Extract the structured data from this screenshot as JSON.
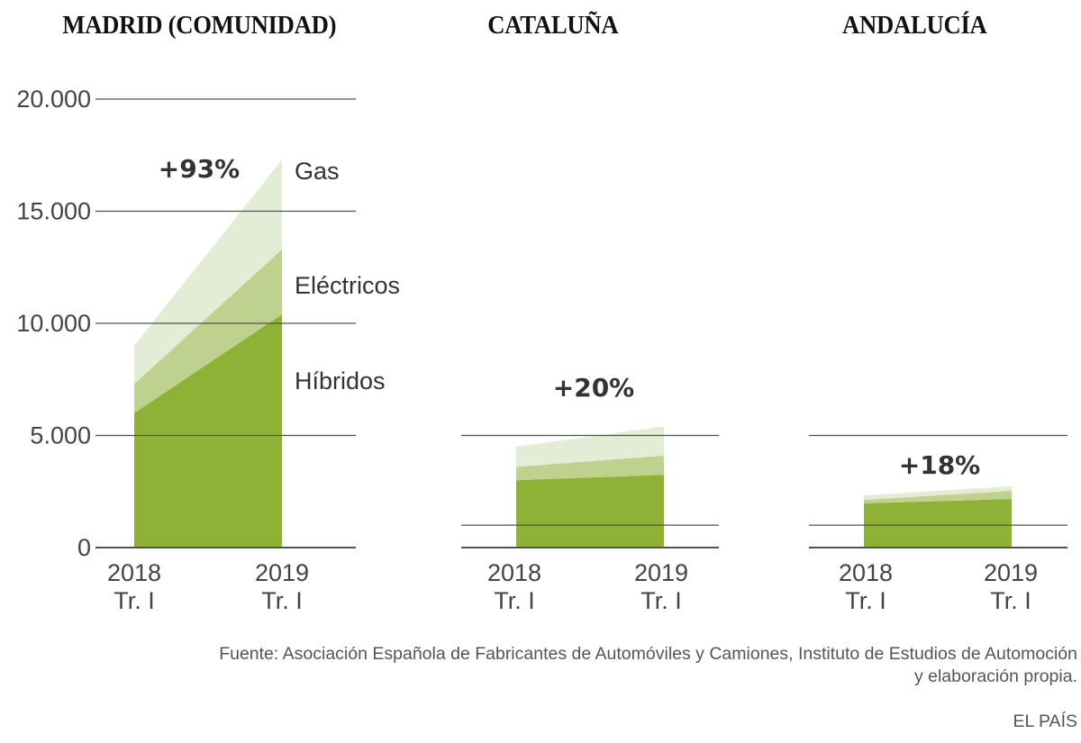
{
  "chart_data": {
    "type": "area",
    "stacked": true,
    "ylim": [
      0,
      20000
    ],
    "y_ticks": [
      "20.000",
      "15.000",
      "10.000",
      "5.000",
      "0"
    ],
    "y_tick_values": [
      20000,
      15000,
      10000,
      5000,
      0
    ],
    "categories": [
      "2018 Tr. I",
      "2019 Tr. I"
    ],
    "category_lines": [
      [
        "2018",
        "Tr. I"
      ],
      [
        "2019",
        "Tr. I"
      ]
    ],
    "legend": [
      "Gas",
      "Eléctricos",
      "Híbridos"
    ],
    "colors": {
      "Híbridos": "#8db236",
      "Eléctricos": "#bfd18f",
      "Gas": "#e3ecd4",
      "grid": "#555050",
      "pct": "#333333"
    },
    "panels": [
      {
        "title": "MADRID (COMUNIDAD)",
        "change": "+93%",
        "gridlines": [
          20000,
          15000,
          10000,
          5000,
          0
        ],
        "series": [
          {
            "name": "Híbridos",
            "values": [
              6000,
              10400
            ]
          },
          {
            "name": "Eléctricos",
            "values": [
              1300,
              2900
            ]
          },
          {
            "name": "Gas",
            "values": [
              1700,
              4000
            ]
          }
        ]
      },
      {
        "title": "CATALUÑA",
        "change": "+20%",
        "gridlines": [
          5000,
          1000,
          0
        ],
        "series": [
          {
            "name": "Híbridos",
            "values": [
              3000,
              3250
            ]
          },
          {
            "name": "Eléctricos",
            "values": [
              600,
              850
            ]
          },
          {
            "name": "Gas",
            "values": [
              900,
              1300
            ]
          }
        ]
      },
      {
        "title": "ANDALUCÍA",
        "change": "+18%",
        "gridlines": [
          5000,
          1000,
          0
        ],
        "series": [
          {
            "name": "Híbridos",
            "values": [
              1970,
              2170
            ]
          },
          {
            "name": "Eléctricos",
            "values": [
              160,
              360
            ]
          },
          {
            "name": "Gas",
            "values": [
              200,
              200
            ]
          }
        ]
      }
    ]
  },
  "footer": {
    "source_line1": "Fuente: Asociación Española de Fabricantes de Automóviles y Camiones, Instituto de Estudios de Automoción",
    "source_line2": "y elaboración propia.",
    "brand": "EL PAÍS"
  }
}
